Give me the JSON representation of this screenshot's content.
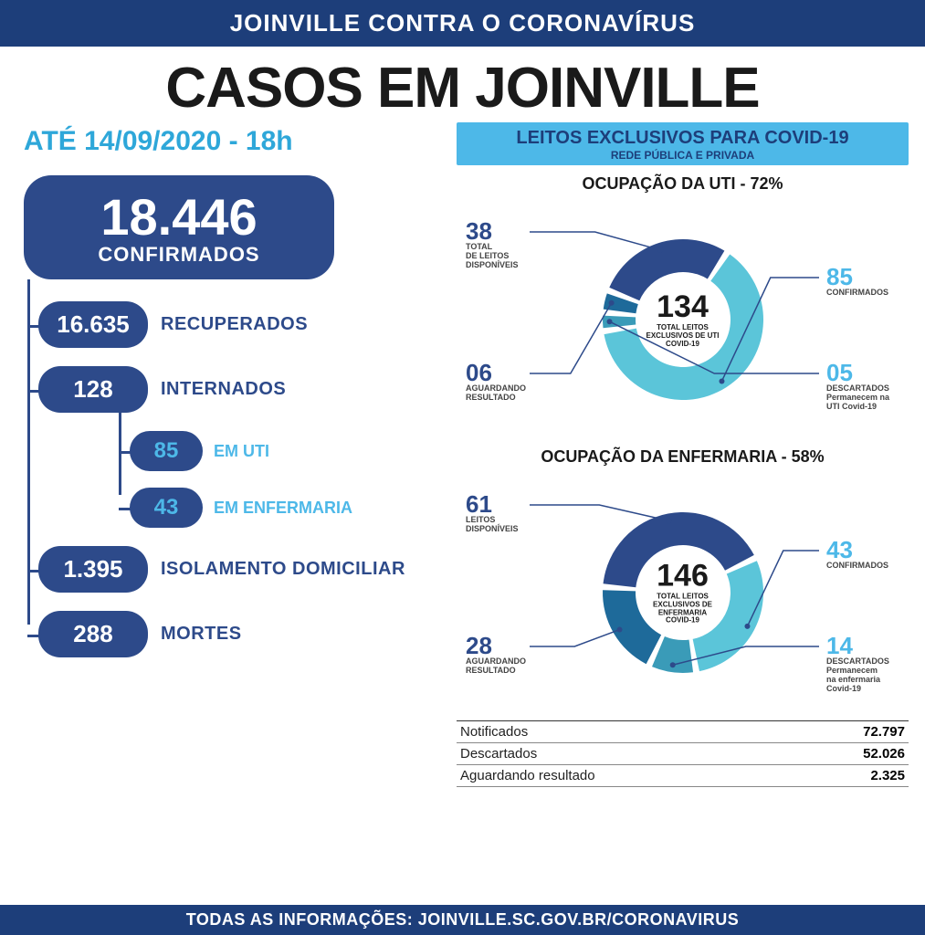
{
  "colors": {
    "dark_blue": "#2d4a8a",
    "light_blue": "#4db8e8",
    "mid_teal": "#3a9bb8",
    "band": "#1d3e7a",
    "text_dark": "#1a1a1a",
    "bg": "#ffffff"
  },
  "header": {
    "title": "JOINVILLE CONTRA O CORONAVÍRUS"
  },
  "main_title": "CASOS EM JOINVILLE",
  "date_line": "ATÉ 14/09/2020 - 18h",
  "confirmed": {
    "value": "18.446",
    "label": "CONFIRMADOS"
  },
  "stats": [
    {
      "value": "16.635",
      "label": "RECUPERADOS"
    },
    {
      "value": "128",
      "label": "INTERNADOS",
      "sub": [
        {
          "value": "85",
          "label": "EM UTI"
        },
        {
          "value": "43",
          "label": "EM ENFERMARIA"
        }
      ]
    },
    {
      "value": "1.395",
      "label": "ISOLAMENTO DOMICILIAR"
    },
    {
      "value": "288",
      "label": "MORTES"
    }
  ],
  "right_header": {
    "t1": "LEITOS EXCLUSIVOS PARA COVID-19",
    "t2": "REDE PÚBLICA E PRIVADA"
  },
  "uti": {
    "title": "OCUPAÇÃO DA UTI - 72%",
    "center_num": "134",
    "center_lbl": "TOTAL LEITOS\nEXCLUSIVOS DE UTI\nCOVID-19",
    "type": "donut",
    "segments": [
      {
        "key": "disponiveis",
        "value": 38,
        "color": "#2d4a8a",
        "label": "TOTAL\nDE LEITOS\nDISPONÍVEIS",
        "num": "38"
      },
      {
        "key": "confirmados",
        "value": 85,
        "color": "#5bc5d9",
        "label": "CONFIRMADOS",
        "num": "85"
      },
      {
        "key": "descartados",
        "value": 5,
        "color": "#3a9bb8",
        "label": "DESCARTADOS\nPermanecem na\nUTI Covid-19",
        "num": "05"
      },
      {
        "key": "aguardando",
        "value": 6,
        "color": "#1e6a9a",
        "label": "AGUARDANDO\nRESULTADO",
        "num": "06"
      }
    ]
  },
  "enfermaria": {
    "title": "OCUPAÇÃO DA ENFERMARIA - 58%",
    "center_num": "146",
    "center_lbl": "TOTAL LEITOS\nEXCLUSIVOS DE\nENFERMARIA\nCOVID-19",
    "type": "donut",
    "segments": [
      {
        "key": "disponiveis",
        "value": 61,
        "color": "#2d4a8a",
        "label": "LEITOS\nDISPONÍVEIS",
        "num": "61"
      },
      {
        "key": "confirmados",
        "value": 43,
        "color": "#5bc5d9",
        "label": "CONFIRMADOS",
        "num": "43"
      },
      {
        "key": "descartados",
        "value": 14,
        "color": "#3a9bb8",
        "label": "DESCARTADOS\nPermanecem\nna enfermaria\nCovid-19",
        "num": "14"
      },
      {
        "key": "aguardando",
        "value": 28,
        "color": "#1e6a9a",
        "label": "AGUARDANDO\nRESULTADO",
        "num": "28"
      }
    ]
  },
  "summary": [
    {
      "label": "Notificados",
      "value": "72.797"
    },
    {
      "label": "Descartados",
      "value": "52.026"
    },
    {
      "label": "Aguardando resultado",
      "value": "2.325"
    }
  ],
  "footer": "TODAS AS INFORMAÇÕES:  JOINVILLE.SC.GOV.BR/CORONAVIRUS"
}
